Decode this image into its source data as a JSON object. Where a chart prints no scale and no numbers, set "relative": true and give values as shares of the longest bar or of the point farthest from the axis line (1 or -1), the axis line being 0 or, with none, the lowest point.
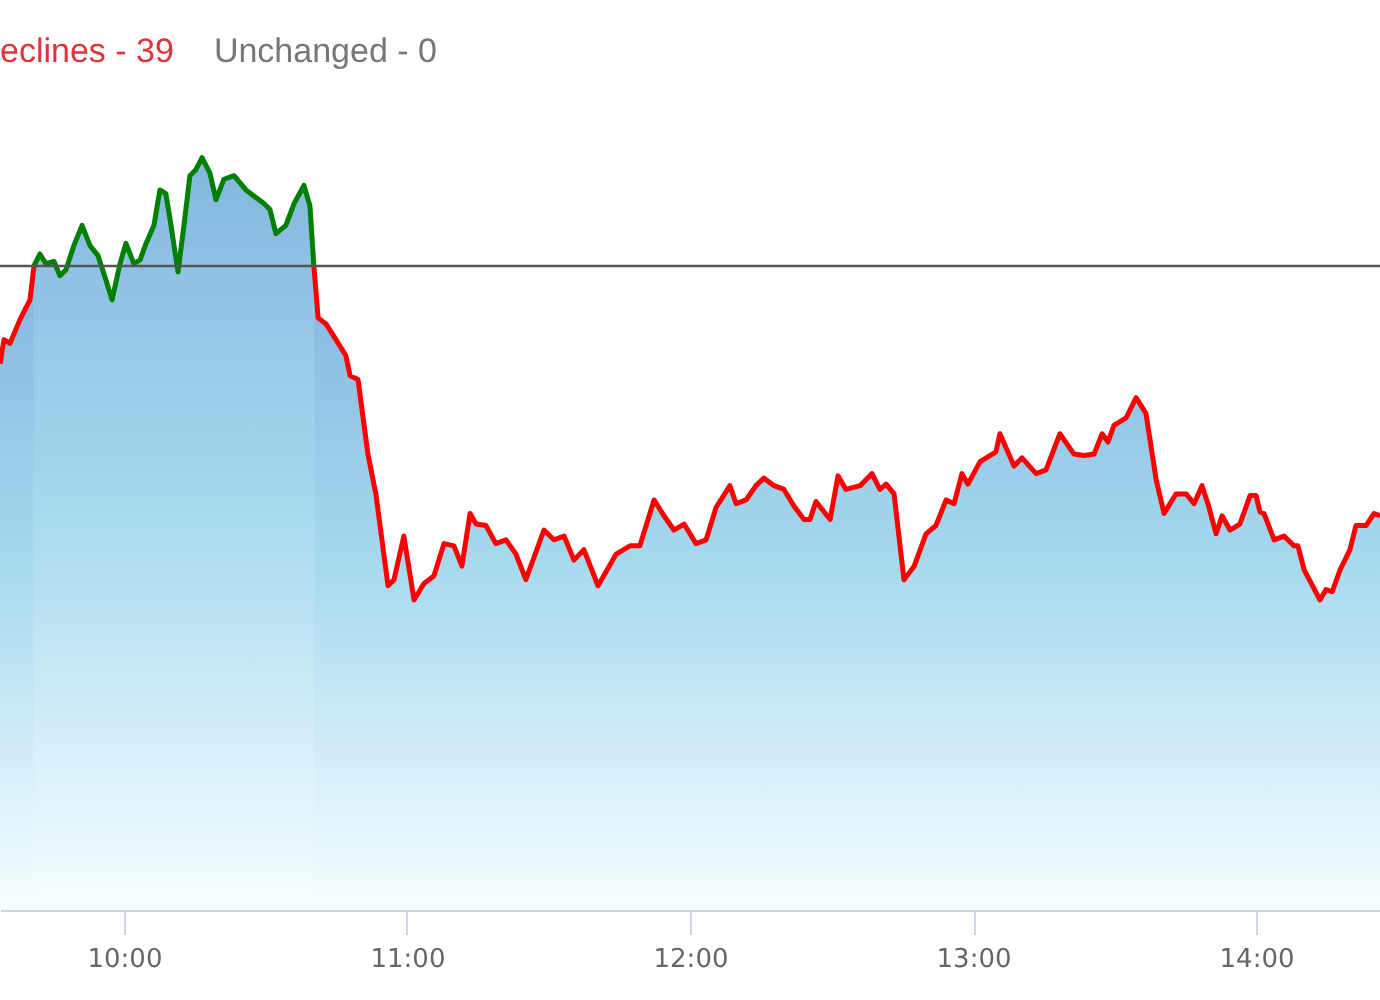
{
  "chart_data": {
    "type": "area",
    "relative": true,
    "annotations": [
      "eclines - 39",
      "Unchanged - 0"
    ],
    "xlim": [
      9.562,
      14.438
    ],
    "xticks": [
      {
        "value": 10,
        "label": "10:00"
      },
      {
        "value": 11,
        "label": "11:00"
      },
      {
        "value": 12,
        "label": "12:00"
      },
      {
        "value": 13,
        "label": "13:00"
      },
      {
        "value": 14,
        "label": "14:00"
      }
    ],
    "ref_lines": [
      {
        "axis": "y",
        "value": 0.856,
        "color": "#555555"
      }
    ],
    "series": [
      {
        "type": "area",
        "color": "#008000",
        "x": [
          9.682,
          9.703,
          9.724,
          9.753,
          9.774,
          9.795,
          9.823,
          9.852,
          9.88,
          9.908,
          9.929,
          9.958,
          9.986,
          10.007,
          10.035,
          10.057,
          10.078,
          10.106,
          10.127,
          10.148,
          10.163,
          10.191,
          10.212,
          10.233,
          10.254,
          10.276,
          10.304,
          10.325,
          10.353,
          10.389,
          10.431,
          10.459,
          10.495,
          10.516,
          10.537,
          10.572,
          10.601,
          10.636,
          10.657,
          10.671
        ],
        "values": [
          0.856,
          0.872,
          0.859,
          0.862,
          0.843,
          0.851,
          0.883,
          0.91,
          0.883,
          0.87,
          0.846,
          0.811,
          0.859,
          0.886,
          0.859,
          0.864,
          0.886,
          0.91,
          0.957,
          0.952,
          0.918,
          0.848,
          0.91,
          0.976,
          0.984,
          1,
          0.979,
          0.944,
          0.971,
          0.976,
          0.957,
          0.949,
          0.939,
          0.931,
          0.899,
          0.91,
          0.939,
          0.963,
          0.936,
          0.856
        ]
      },
      {
        "type": "area",
        "color": "#ff0000",
        "x": [
          9.562,
          9.576,
          9.597,
          9.633,
          9.668,
          9.682
        ],
        "values": [
          0.726,
          0.758,
          0.753,
          0.785,
          0.811,
          0.856
        ]
      },
      {
        "type": "area",
        "color": "#ff0000",
        "x": [
          10.671,
          10.686,
          10.714,
          10.749,
          10.784,
          10.799,
          10.827,
          10.862,
          10.89,
          10.933,
          10.954,
          10.989,
          11.025,
          11.06,
          11.095,
          11.131,
          11.166,
          11.194,
          11.223,
          11.244,
          11.279,
          11.314,
          11.35,
          11.385,
          11.42,
          11.484,
          11.519,
          11.555,
          11.59,
          11.625,
          11.675,
          11.739,
          11.788,
          11.823,
          11.873,
          11.908,
          11.943,
          11.979,
          12.0,
          12.021,
          12.057,
          12.092,
          12.141,
          12.163,
          12.198,
          12.233,
          12.261,
          12.297,
          12.332,
          12.367,
          12.403,
          12.424,
          12.445,
          12.495,
          12.523,
          12.551,
          12.601,
          12.643,
          12.671,
          12.693,
          12.721,
          12.756,
          12.792,
          12.834,
          12.869,
          12.905,
          12.933,
          12.961,
          12.982,
          13.025,
          13.081,
          13.095,
          13.145,
          13.173,
          13.223,
          13.258,
          13.307,
          13.357,
          13.392,
          13.428,
          13.456,
          13.477,
          13.498,
          13.541,
          13.576,
          13.611,
          13.647,
          13.675,
          13.717,
          13.753,
          13.781,
          13.809,
          13.83,
          13.859,
          13.88,
          13.908,
          13.943,
          13.979,
          14.0,
          14.014,
          14.028,
          14.064,
          14.099,
          14.134,
          14.148,
          14.17,
          14.226,
          14.247,
          14.269,
          14.297,
          14.332,
          14.353,
          14.389,
          14.417,
          14.438
        ],
        "values": [
          0.856,
          0.787,
          0.779,
          0.758,
          0.737,
          0.71,
          0.705,
          0.606,
          0.553,
          0.431,
          0.439,
          0.497,
          0.412,
          0.434,
          0.444,
          0.487,
          0.484,
          0.457,
          0.527,
          0.513,
          0.511,
          0.487,
          0.492,
          0.473,
          0.439,
          0.505,
          0.492,
          0.497,
          0.465,
          0.479,
          0.431,
          0.473,
          0.484,
          0.484,
          0.545,
          0.524,
          0.505,
          0.513,
          0.5,
          0.487,
          0.492,
          0.535,
          0.564,
          0.54,
          0.545,
          0.564,
          0.574,
          0.564,
          0.559,
          0.537,
          0.519,
          0.519,
          0.543,
          0.519,
          0.577,
          0.559,
          0.564,
          0.58,
          0.559,
          0.566,
          0.553,
          0.439,
          0.457,
          0.5,
          0.511,
          0.545,
          0.54,
          0.58,
          0.566,
          0.596,
          0.609,
          0.633,
          0.59,
          0.601,
          0.58,
          0.585,
          0.633,
          0.606,
          0.604,
          0.606,
          0.633,
          0.622,
          0.644,
          0.654,
          0.681,
          0.66,
          0.572,
          0.527,
          0.553,
          0.553,
          0.54,
          0.564,
          0.54,
          0.5,
          0.524,
          0.505,
          0.513,
          0.551,
          0.551,
          0.529,
          0.527,
          0.492,
          0.497,
          0.484,
          0.484,
          0.452,
          0.412,
          0.426,
          0.423,
          0.452,
          0.479,
          0.511,
          0.511,
          0.527,
          0.524
        ]
      }
    ]
  }
}
